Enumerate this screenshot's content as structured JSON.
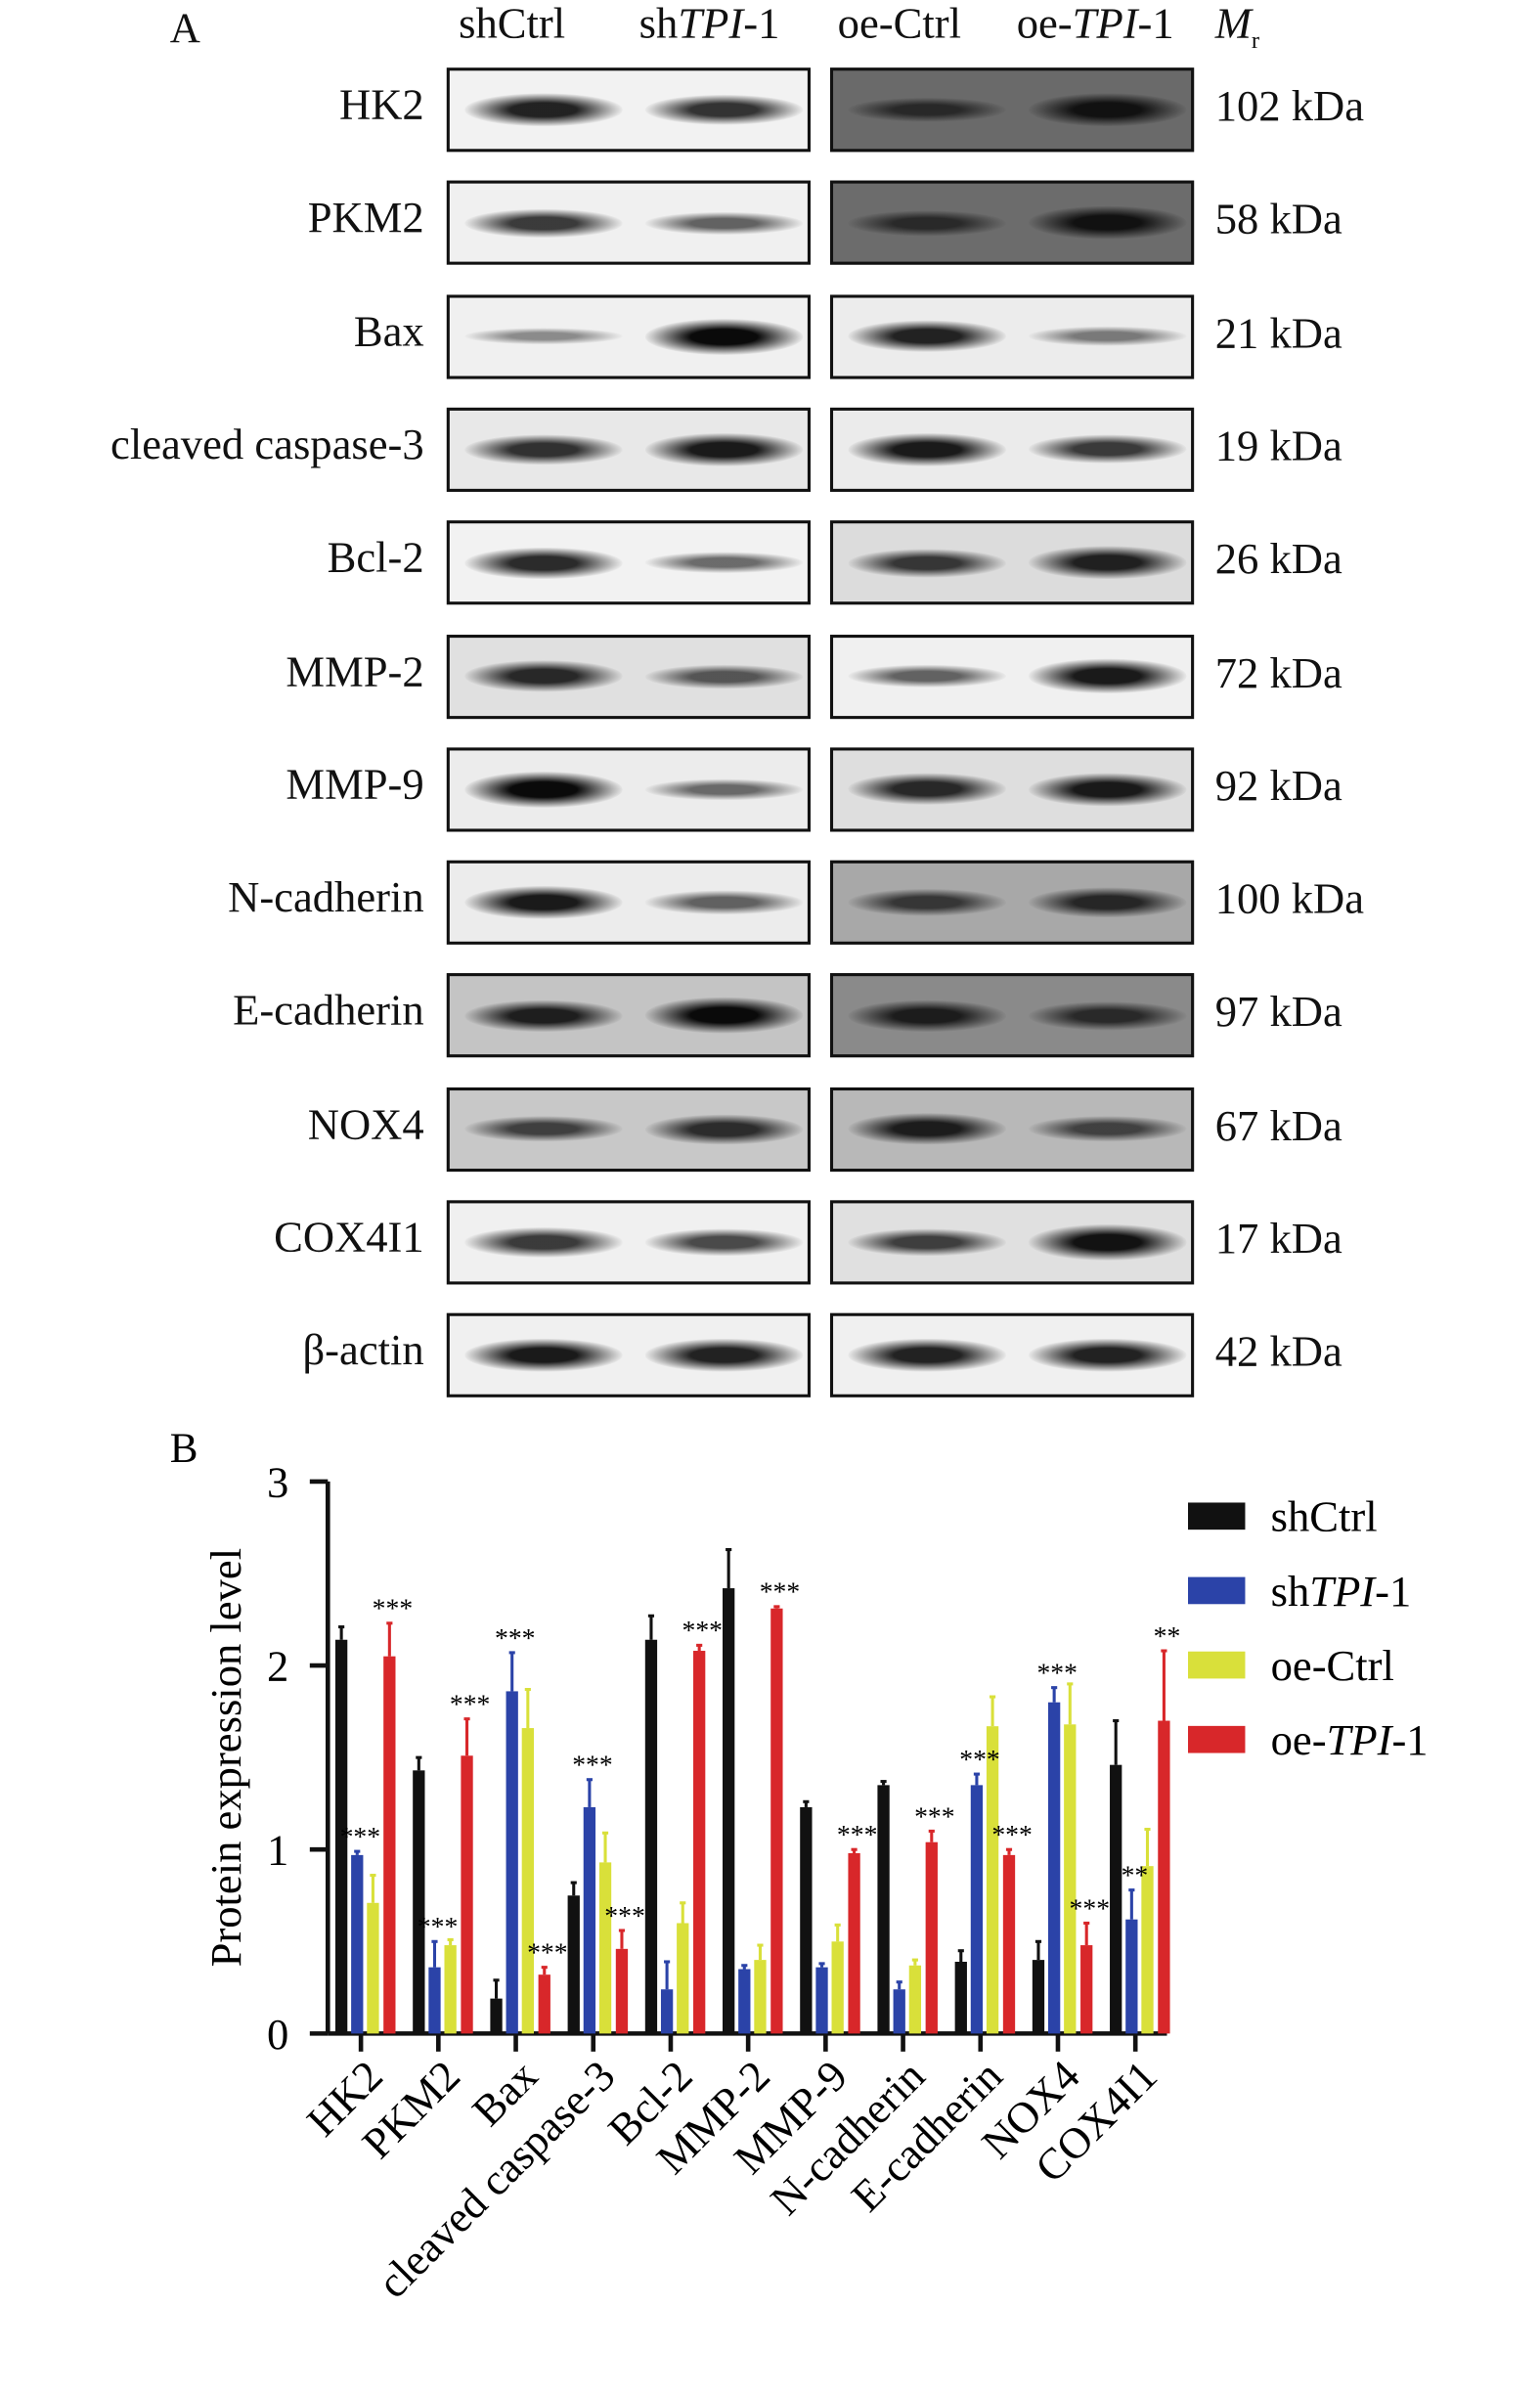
{
  "panel_a": {
    "letter": "A",
    "lanes": [
      {
        "prefix": "sh",
        "italic": "",
        "suffix": "Ctrl"
      },
      {
        "prefix": "sh",
        "italic": "TPI",
        "suffix": "-1"
      },
      {
        "prefix": "oe-Ctrl",
        "italic": "",
        "suffix": ""
      },
      {
        "prefix": "oe-",
        "italic": "TPI",
        "suffix": "-1"
      }
    ],
    "mr_label": "M",
    "mr_sub": "r",
    "rows": [
      {
        "protein": "HK2",
        "mw": "102 kDa",
        "bands": [
          0.85,
          0.75,
          0.55,
          0.9
        ],
        "bg": [
          "#f2f2f2",
          "#6a6a6a"
        ]
      },
      {
        "protein": "PKM2",
        "mw": "58 kDa",
        "bands": [
          0.7,
          0.45,
          0.55,
          0.9
        ],
        "bg": [
          "#f0f0f0",
          "#6c6c6c"
        ]
      },
      {
        "protein": "Bax",
        "mw": "21 kDa",
        "bands": [
          0.2,
          1.0,
          0.85,
          0.3
        ],
        "bg": [
          "#f0f0f0",
          "#ececec"
        ]
      },
      {
        "protein": "cleaved caspase-3",
        "mw": "19 kDa",
        "bands": [
          0.75,
          0.9,
          0.9,
          0.7
        ],
        "bg": [
          "#e8e8e8",
          "#ebebeb"
        ]
      },
      {
        "protein": "Bcl-2",
        "mw": "26 kDa",
        "bands": [
          0.8,
          0.4,
          0.7,
          0.85
        ],
        "bg": [
          "#f2f2f2",
          "#dcdcdc"
        ]
      },
      {
        "protein": "MMP-2",
        "mw": "72 kDa",
        "bands": [
          0.8,
          0.5,
          0.45,
          0.9
        ],
        "bg": [
          "#e0e0e0",
          "#f0f0f0"
        ]
      },
      {
        "protein": "MMP-9",
        "mw": "92 kDa",
        "bands": [
          1.0,
          0.4,
          0.8,
          0.9
        ],
        "bg": [
          "#ececec",
          "#dedede"
        ]
      },
      {
        "protein": "N-cadherin",
        "mw": "100 kDa",
        "bands": [
          0.9,
          0.45,
          0.6,
          0.75
        ],
        "bg": [
          "#ececec",
          "#a8a8a8"
        ]
      },
      {
        "protein": "E-cadherin",
        "mw": "97 kDa",
        "bands": [
          0.85,
          1.0,
          0.8,
          0.65
        ],
        "bg": [
          "#c4c4c4",
          "#8a8a8a"
        ]
      },
      {
        "protein": "NOX4",
        "mw": "67 kDa",
        "bands": [
          0.6,
          0.75,
          0.85,
          0.55
        ],
        "bg": [
          "#c8c8c8",
          "#b8b8b8"
        ]
      },
      {
        "protein": "COX4I1",
        "mw": "17 kDa",
        "bands": [
          0.7,
          0.6,
          0.65,
          0.95
        ],
        "bg": [
          "#f0f0f0",
          "#e0e0e0"
        ]
      },
      {
        "protein": "β-actin",
        "mw": "42 kDa",
        "bands": [
          0.9,
          0.85,
          0.85,
          0.85
        ],
        "bg": [
          "#f0f0f0",
          "#f0f0f0"
        ]
      }
    ]
  },
  "chart_data": {
    "type": "bar",
    "panel_letter": "B",
    "title": "",
    "xlabel": "",
    "ylabel": "Protein expression level",
    "ylim": [
      0,
      3
    ],
    "yticks": [
      "0",
      "1",
      "2",
      "3"
    ],
    "legend_position": "top-right",
    "categories": [
      "HK2",
      "PKM2",
      "Bax",
      "cleaved caspase-3",
      "Bcl-2",
      "MMP-2",
      "MMP-9",
      "N-cadherin",
      "E-cadherin",
      "NOX4",
      "COX4I1"
    ],
    "series": [
      {
        "name": "shCtrl",
        "prefix": "shCtrl",
        "italic": "",
        "suffix": "",
        "color": "#111111",
        "values": [
          2.14,
          1.43,
          0.19,
          0.75,
          2.14,
          2.42,
          1.23,
          1.35,
          0.39,
          0.4,
          1.46
        ],
        "errors": [
          0.07,
          0.07,
          0.1,
          0.07,
          0.13,
          0.21,
          0.03,
          0.02,
          0.06,
          0.1,
          0.24
        ]
      },
      {
        "name": "shTPI-1",
        "prefix": "sh",
        "italic": "TPI",
        "suffix": "-1",
        "color": "#2b43a8",
        "values": [
          0.97,
          0.36,
          1.86,
          1.23,
          0.24,
          0.35,
          0.36,
          0.24,
          1.35,
          1.8,
          0.62
        ],
        "errors": [
          0.02,
          0.14,
          0.21,
          0.15,
          0.15,
          0.02,
          0.02,
          0.04,
          0.06,
          0.08,
          0.16
        ]
      },
      {
        "name": "oe-Ctrl",
        "prefix": "oe-Ctrl",
        "italic": "",
        "suffix": "",
        "color": "#d9e03a",
        "values": [
          0.71,
          0.48,
          1.66,
          0.93,
          0.6,
          0.4,
          0.5,
          0.37,
          1.67,
          1.68,
          0.91
        ],
        "errors": [
          0.15,
          0.03,
          0.21,
          0.16,
          0.11,
          0.08,
          0.09,
          0.03,
          0.16,
          0.22,
          0.2
        ]
      },
      {
        "name": "oe-TPI-1",
        "prefix": "oe-",
        "italic": "TPI",
        "suffix": "-1",
        "color": "#d8272a",
        "values": [
          2.05,
          1.51,
          0.32,
          0.46,
          2.08,
          2.31,
          0.98,
          1.04,
          0.97,
          0.48,
          1.7
        ],
        "errors": [
          0.18,
          0.2,
          0.04,
          0.1,
          0.03,
          0.01,
          0.02,
          0.06,
          0.03,
          0.12,
          0.38
        ]
      }
    ],
    "significance": [
      {
        "category": 0,
        "series": 1,
        "label": "***"
      },
      {
        "category": 0,
        "series": 3,
        "label": "***"
      },
      {
        "category": 1,
        "series": 1,
        "label": "***"
      },
      {
        "category": 1,
        "series": 3,
        "label": "***"
      },
      {
        "category": 2,
        "series": 1,
        "label": "***"
      },
      {
        "category": 2,
        "series": 3,
        "label": "***"
      },
      {
        "category": 3,
        "series": 1,
        "label": "***"
      },
      {
        "category": 3,
        "series": 3,
        "label": "***"
      },
      {
        "category": 4,
        "series": 3,
        "label": "***"
      },
      {
        "category": 5,
        "series": 3,
        "label": "***"
      },
      {
        "category": 6,
        "series": 3,
        "label": "***"
      },
      {
        "category": 7,
        "series": 3,
        "label": "***"
      },
      {
        "category": 8,
        "series": 1,
        "label": "***"
      },
      {
        "category": 8,
        "series": 3,
        "label": "***"
      },
      {
        "category": 9,
        "series": 1,
        "label": "***"
      },
      {
        "category": 9,
        "series": 3,
        "label": "***"
      },
      {
        "category": 10,
        "series": 1,
        "label": "**"
      },
      {
        "category": 10,
        "series": 3,
        "label": "**"
      }
    ]
  }
}
